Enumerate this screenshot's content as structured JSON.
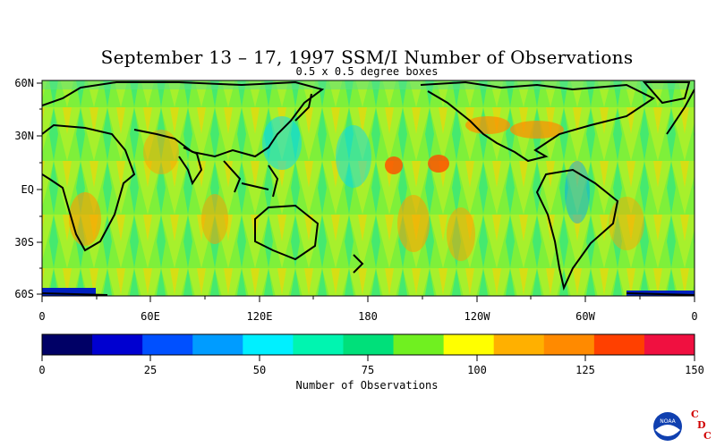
{
  "title": "September 13 – 17, 1997 SSM/I Number of Observations",
  "subtitle": "0.5 x 0.5 degree boxes",
  "map": {
    "lat_labels": [
      "60N",
      "30N",
      "EQ",
      "30S",
      "60S"
    ],
    "lon_labels": [
      "0",
      "60E",
      "120E",
      "180",
      "120W",
      "60W",
      "0"
    ]
  },
  "colorbar": {
    "label": "Number of Observations",
    "tick_labels": [
      "0",
      "25",
      "50",
      "75",
      "100",
      "125",
      "150"
    ],
    "colors": [
      "#000066",
      "#0000d0",
      "#0050ff",
      "#009cff",
      "#00f0ff",
      "#00f5b0",
      "#00e07a",
      "#70f020",
      "#ffff00",
      "#ffb000",
      "#ff8a00",
      "#ff4000",
      "#f01040"
    ]
  },
  "logo": {
    "name": "NOAA",
    "letters": [
      "C",
      "D",
      "C"
    ]
  }
}
